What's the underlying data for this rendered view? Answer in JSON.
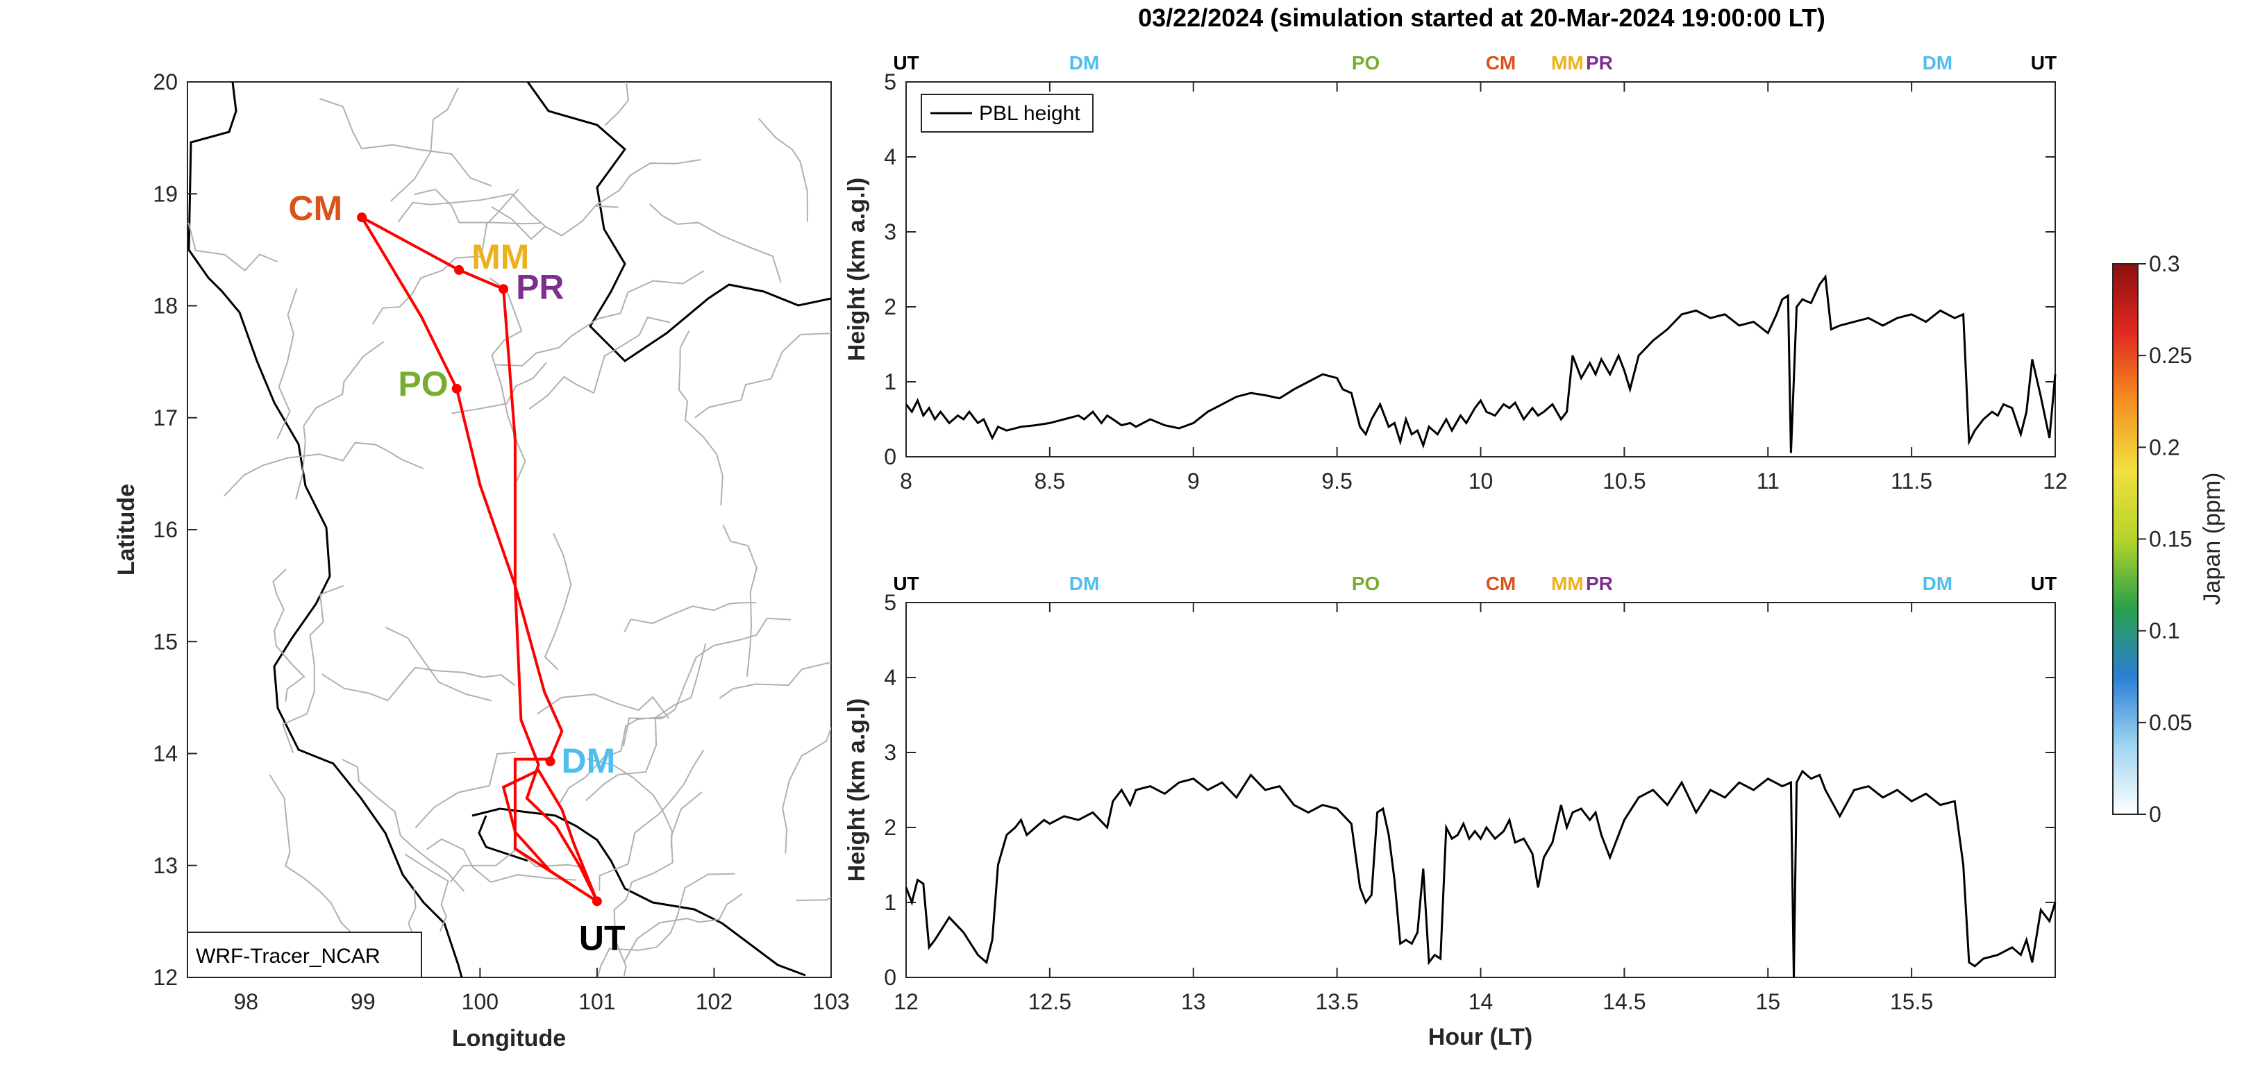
{
  "title": "03/22/2024 (simulation started at 20-Mar-2024 19:00:00 LT)",
  "colors": {
    "UT": "#000000",
    "DM": "#4DBEEE",
    "PO": "#77AC30",
    "CM": "#D95319",
    "MM": "#EDB120",
    "PR": "#7E2F8E",
    "track": "#ff0000"
  },
  "chart_data": [
    {
      "type": "map",
      "xlabel": "Longitude",
      "ylabel": "Latitude",
      "xlim": [
        97.5,
        103
      ],
      "ylim": [
        12,
        20
      ],
      "xticks": [
        98,
        99,
        100,
        101,
        102,
        103
      ],
      "yticks": [
        12,
        13,
        14,
        15,
        16,
        17,
        18,
        19,
        20
      ],
      "legend": "WRF-Tracer_NCAR",
      "sites": [
        {
          "code": "CM",
          "lon": 98.99,
          "lat": 18.79
        },
        {
          "code": "MM",
          "lon": 99.82,
          "lat": 18.32
        },
        {
          "code": "PR",
          "lon": 100.2,
          "lat": 18.15
        },
        {
          "code": "PO",
          "lon": 99.8,
          "lat": 17.26
        },
        {
          "code": "DM",
          "lon": 100.6,
          "lat": 13.93
        },
        {
          "code": "UT",
          "lon": 101.0,
          "lat": 12.68
        }
      ],
      "track": [
        [
          101.0,
          12.68
        ],
        [
          100.3,
          13.15
        ],
        [
          100.3,
          13.95
        ],
        [
          100.6,
          13.95
        ],
        [
          100.7,
          14.2
        ],
        [
          100.55,
          14.55
        ],
        [
          100.3,
          15.5
        ],
        [
          100.0,
          16.4
        ],
        [
          99.8,
          17.26
        ],
        [
          99.5,
          17.9
        ],
        [
          98.99,
          18.79
        ],
        [
          99.82,
          18.32
        ],
        [
          100.2,
          18.15
        ],
        [
          100.3,
          16.8
        ],
        [
          100.3,
          15.5
        ],
        [
          100.35,
          14.3
        ],
        [
          100.5,
          13.9
        ],
        [
          100.4,
          13.6
        ],
        [
          100.65,
          13.35
        ],
        [
          100.85,
          13.0
        ],
        [
          101.0,
          12.68
        ],
        [
          100.6,
          12.95
        ],
        [
          100.3,
          13.3
        ],
        [
          100.2,
          13.7
        ],
        [
          100.5,
          13.85
        ],
        [
          100.7,
          13.5
        ],
        [
          100.8,
          13.2
        ],
        [
          101.0,
          12.68
        ]
      ]
    },
    {
      "type": "line",
      "ylabel": "Height (km a.g.l)",
      "xlim": [
        8,
        12
      ],
      "ylim": [
        0,
        5
      ],
      "xticks": [
        8,
        8.5,
        9,
        9.5,
        10,
        10.5,
        11,
        11.5,
        12
      ],
      "xtick_labels": [
        "8",
        "8.5",
        "9",
        "9.5",
        "10",
        "10.5",
        "11",
        "11.5",
        "12"
      ],
      "yticks": [
        0,
        1,
        2,
        3,
        4,
        5
      ],
      "legend": "top-left",
      "series": [
        {
          "name": "PBL height",
          "x": [
            8.0,
            8.02,
            8.04,
            8.06,
            8.08,
            8.1,
            8.12,
            8.15,
            8.18,
            8.2,
            8.22,
            8.25,
            8.27,
            8.3,
            8.32,
            8.35,
            8.4,
            8.45,
            8.5,
            8.55,
            8.6,
            8.62,
            8.65,
            8.68,
            8.7,
            8.72,
            8.75,
            8.78,
            8.8,
            8.85,
            8.9,
            8.95,
            9.0,
            9.05,
            9.1,
            9.15,
            9.2,
            9.25,
            9.3,
            9.35,
            9.4,
            9.45,
            9.5,
            9.52,
            9.55,
            9.58,
            9.6,
            9.62,
            9.65,
            9.68,
            9.7,
            9.72,
            9.74,
            9.76,
            9.78,
            9.8,
            9.82,
            9.85,
            9.88,
            9.9,
            9.93,
            9.95,
            9.98,
            10.0,
            10.02,
            10.05,
            10.08,
            10.1,
            10.12,
            10.15,
            10.18,
            10.2,
            10.22,
            10.25,
            10.28,
            10.3,
            10.32,
            10.35,
            10.38,
            10.4,
            10.42,
            10.45,
            10.48,
            10.5,
            10.52,
            10.55,
            10.6,
            10.65,
            10.7,
            10.75,
            10.8,
            10.85,
            10.9,
            10.95,
            11.0,
            11.03,
            11.05,
            11.07,
            11.08,
            11.1,
            11.12,
            11.15,
            11.18,
            11.2,
            11.22,
            11.25,
            11.3,
            11.35,
            11.4,
            11.45,
            11.5,
            11.55,
            11.6,
            11.65,
            11.68,
            11.7,
            11.72,
            11.75,
            11.78,
            11.8,
            11.82,
            11.85,
            11.88,
            11.9,
            11.92,
            11.95,
            11.98,
            12.0
          ],
          "y": [
            0.7,
            0.6,
            0.75,
            0.55,
            0.65,
            0.5,
            0.6,
            0.45,
            0.55,
            0.5,
            0.6,
            0.45,
            0.5,
            0.25,
            0.4,
            0.35,
            0.4,
            0.42,
            0.45,
            0.5,
            0.55,
            0.5,
            0.6,
            0.45,
            0.55,
            0.5,
            0.42,
            0.45,
            0.4,
            0.5,
            0.42,
            0.38,
            0.45,
            0.6,
            0.7,
            0.8,
            0.85,
            0.82,
            0.78,
            0.9,
            1.0,
            1.1,
            1.05,
            0.9,
            0.85,
            0.4,
            0.3,
            0.5,
            0.7,
            0.4,
            0.45,
            0.2,
            0.5,
            0.3,
            0.35,
            0.15,
            0.4,
            0.3,
            0.5,
            0.35,
            0.55,
            0.45,
            0.65,
            0.75,
            0.6,
            0.55,
            0.7,
            0.65,
            0.72,
            0.5,
            0.65,
            0.55,
            0.6,
            0.7,
            0.5,
            0.6,
            1.35,
            1.05,
            1.25,
            1.1,
            1.3,
            1.1,
            1.35,
            1.15,
            0.9,
            1.35,
            1.55,
            1.7,
            1.9,
            1.95,
            1.85,
            1.9,
            1.75,
            1.8,
            1.65,
            1.9,
            2.1,
            2.15,
            0.05,
            2.0,
            2.1,
            2.05,
            2.3,
            2.4,
            1.7,
            1.75,
            1.8,
            1.85,
            1.75,
            1.85,
            1.9,
            1.8,
            1.95,
            1.85,
            1.9,
            0.2,
            0.35,
            0.5,
            0.6,
            0.55,
            0.7,
            0.65,
            0.3,
            0.6,
            1.3,
            0.8,
            0.25,
            1.1
          ]
        }
      ],
      "top_markers": [
        {
          "label": "UT",
          "x": 8.0
        },
        {
          "label": "DM",
          "x": 8.62
        },
        {
          "label": "PO",
          "x": 9.6
        },
        {
          "label": "CM",
          "x": 10.07
        },
        {
          "label": "MM",
          "x": 10.3
        },
        {
          "label": "PR",
          "x": 10.4
        },
        {
          "label": "DM",
          "x": 11.59
        },
        {
          "label": "UT",
          "x": 11.96
        }
      ]
    },
    {
      "type": "line",
      "xlabel": "Hour (LT)",
      "ylabel": "Height (km a.g.l)",
      "xlim": [
        12,
        16
      ],
      "ylim": [
        0,
        5
      ],
      "xticks": [
        12,
        12.5,
        13,
        13.5,
        14,
        14.5,
        15,
        15.5
      ],
      "xtick_labels": [
        "12",
        "12.5",
        "13",
        "13.5",
        "14",
        "14.5",
        "15",
        "15.5"
      ],
      "yticks": [
        0,
        1,
        2,
        3,
        4,
        5
      ],
      "series": [
        {
          "x": [
            12.0,
            12.02,
            12.04,
            12.06,
            12.08,
            12.1,
            12.15,
            12.2,
            12.25,
            12.28,
            12.3,
            12.32,
            12.35,
            12.38,
            12.4,
            12.42,
            12.45,
            12.48,
            12.5,
            12.55,
            12.6,
            12.65,
            12.7,
            12.72,
            12.75,
            12.78,
            12.8,
            12.85,
            12.9,
            12.95,
            13.0,
            13.05,
            13.1,
            13.15,
            13.2,
            13.25,
            13.3,
            13.35,
            13.4,
            13.45,
            13.5,
            13.55,
            13.58,
            13.6,
            13.62,
            13.64,
            13.66,
            13.68,
            13.7,
            13.72,
            13.74,
            13.76,
            13.78,
            13.8,
            13.82,
            13.84,
            13.86,
            13.88,
            13.9,
            13.92,
            13.94,
            13.96,
            13.98,
            14.0,
            14.02,
            14.05,
            14.08,
            14.1,
            14.12,
            14.15,
            14.18,
            14.2,
            14.22,
            14.25,
            14.28,
            14.3,
            14.32,
            14.35,
            14.38,
            14.4,
            14.42,
            14.45,
            14.5,
            14.55,
            14.6,
            14.65,
            14.7,
            14.75,
            14.8,
            14.85,
            14.9,
            14.95,
            15.0,
            15.05,
            15.08,
            15.09,
            15.1,
            15.12,
            15.15,
            15.18,
            15.2,
            15.25,
            15.3,
            15.35,
            15.4,
            15.45,
            15.5,
            15.55,
            15.6,
            15.65,
            15.68,
            15.7,
            15.72,
            15.75,
            15.8,
            15.85,
            15.88,
            15.9,
            15.92,
            15.95,
            15.98,
            16.0
          ],
          "y": [
            1.2,
            1.0,
            1.3,
            1.25,
            0.4,
            0.5,
            0.8,
            0.6,
            0.3,
            0.2,
            0.5,
            1.5,
            1.9,
            2.0,
            2.1,
            1.9,
            2.0,
            2.1,
            2.05,
            2.15,
            2.1,
            2.2,
            2.0,
            2.35,
            2.5,
            2.3,
            2.5,
            2.55,
            2.45,
            2.6,
            2.65,
            2.5,
            2.6,
            2.4,
            2.7,
            2.5,
            2.55,
            2.3,
            2.2,
            2.3,
            2.25,
            2.05,
            1.2,
            1.0,
            1.1,
            2.2,
            2.25,
            1.9,
            1.3,
            0.45,
            0.5,
            0.45,
            0.6,
            1.45,
            0.2,
            0.3,
            0.25,
            2.0,
            1.85,
            1.9,
            2.05,
            1.85,
            1.95,
            1.85,
            2.0,
            1.85,
            1.95,
            2.1,
            1.8,
            1.85,
            1.65,
            1.2,
            1.6,
            1.8,
            2.3,
            2.0,
            2.2,
            2.25,
            2.1,
            2.2,
            1.9,
            1.6,
            2.1,
            2.4,
            2.5,
            2.3,
            2.6,
            2.2,
            2.5,
            2.4,
            2.6,
            2.5,
            2.65,
            2.55,
            2.6,
            0.0,
            2.6,
            2.75,
            2.65,
            2.7,
            2.5,
            2.15,
            2.5,
            2.55,
            2.4,
            2.5,
            2.35,
            2.45,
            2.3,
            2.35,
            1.5,
            0.2,
            0.15,
            0.25,
            0.3,
            0.4,
            0.3,
            0.5,
            0.2,
            0.9,
            0.75,
            1.0
          ]
        }
      ],
      "top_markers": [
        {
          "label": "UT",
          "x": 12.0
        },
        {
          "label": "DM",
          "x": 12.62
        },
        {
          "label": "PO",
          "x": 13.6
        },
        {
          "label": "CM",
          "x": 14.07
        },
        {
          "label": "MM",
          "x": 14.3
        },
        {
          "label": "PR",
          "x": 14.4
        },
        {
          "label": "DM",
          "x": 15.59
        },
        {
          "label": "UT",
          "x": 15.96
        }
      ]
    },
    {
      "type": "colorbar",
      "label": "Japan (ppm)",
      "range": [
        0,
        0.3
      ],
      "ticks": [
        0,
        0.05,
        0.1,
        0.15,
        0.2,
        0.25,
        0.3
      ],
      "colormap": [
        "#ffffff",
        "#9fd4f0",
        "#2a7fd4",
        "#2aa04a",
        "#b5d42a",
        "#f0e040",
        "#f59020",
        "#e02a20",
        "#8b0f0f"
      ]
    }
  ]
}
